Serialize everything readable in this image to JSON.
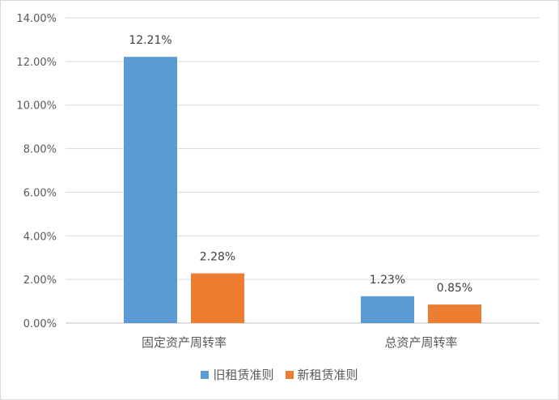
{
  "chart_data": {
    "type": "bar",
    "categories": [
      "固定资产周转率",
      "总资产周转率"
    ],
    "series": [
      {
        "name": "旧租赁准则",
        "values": [
          12.21,
          1.23
        ],
        "labels": [
          "12.21%",
          "1.23%"
        ],
        "color": "#5b9bd5"
      },
      {
        "name": "新租赁准则",
        "values": [
          2.28,
          0.85
        ],
        "labels": [
          "2.28%",
          "0.85%"
        ],
        "color": "#ed7d31"
      }
    ],
    "yticks": [
      "0.00%",
      "2.00%",
      "4.00%",
      "6.00%",
      "8.00%",
      "10.00%",
      "12.00%",
      "14.00%"
    ],
    "ylim": [
      0,
      14
    ],
    "grid": true,
    "legend": "bottom"
  }
}
